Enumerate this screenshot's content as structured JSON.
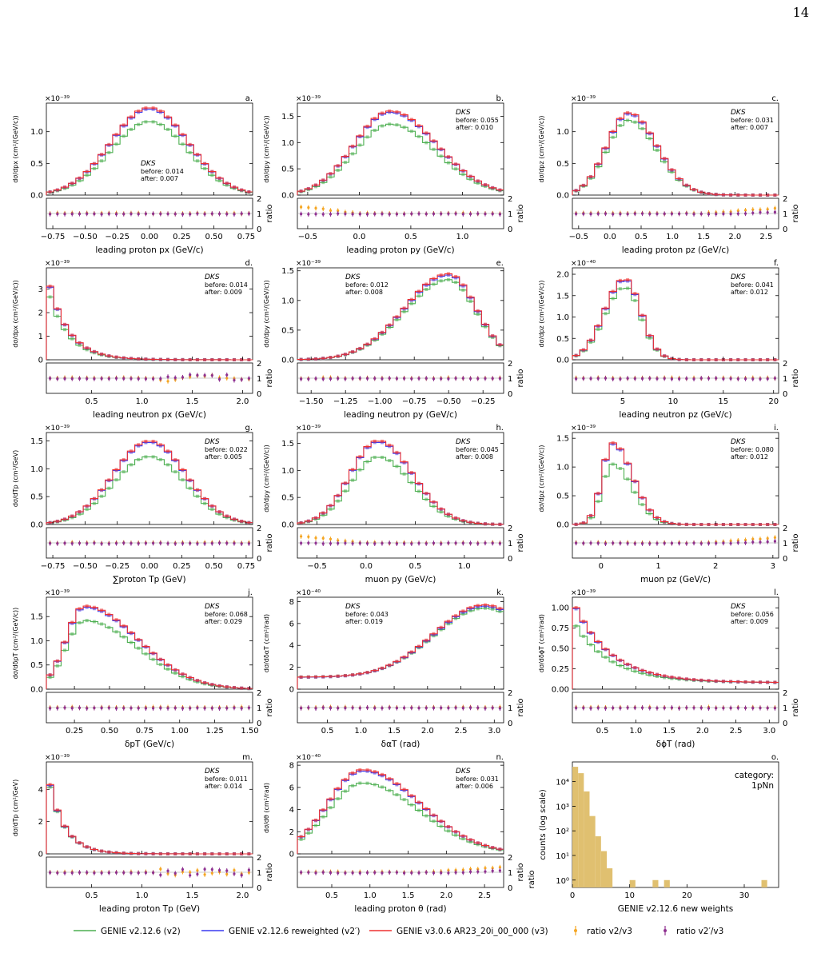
{
  "page_number": "14",
  "colors": {
    "v2": "#4caf50",
    "v2prime": "#3a3af0",
    "v3": "#ee3030",
    "ratio_v2": "#f5a623",
    "ratio_v2prime": "#8e3090",
    "hist": "#e0c070"
  },
  "legend": {
    "v2": "GENIE v2.12.6 (v2)",
    "v2prime": "GENIE v2.12.6 reweighted (v2′)",
    "v3": "GENIE v3.0.6 AR23_20i_00_000 (v3)",
    "ratio_v2": "ratio v2/v3",
    "ratio_v2prime": "ratio v2′/v3"
  },
  "ratio_axis_label": "ratio",
  "ks_title": "DKS",
  "chart_data": [
    {
      "id": "a",
      "type": "line",
      "panel_letter": "a.",
      "xlabel": "leading proton px (GeV/c)",
      "ylabel": "dσ/dpx (cm²/(GeV/c))",
      "multiplier": "×10⁻³⁹",
      "xlim": [
        -0.8,
        0.8
      ],
      "ylim": [
        0,
        1.45
      ],
      "xticks": [
        -0.75,
        -0.5,
        -0.25,
        0,
        0.25,
        0.5,
        0.75
      ],
      "xticklabels": [
        "−0.75",
        "−0.50",
        "−0.25",
        "0.00",
        "0.25",
        "0.50",
        "0.75"
      ],
      "yticks": [
        0,
        0.5,
        1.0
      ],
      "yticklabels": [
        "0.0",
        "0.5",
        "1.0"
      ],
      "ks_pos": "mid-left",
      "ks_before": "before: 0.014",
      "ks_after": "after: 0.007",
      "shape": {
        "kind": "gauss",
        "peak": 1.38,
        "peak_v2": 1.16,
        "center": 0,
        "width": 0.3
      },
      "ratio_pattern": "flat"
    },
    {
      "id": "b",
      "type": "line",
      "panel_letter": "b.",
      "xlabel": "leading proton py (GeV/c)",
      "ylabel": "dσ/dpy (cm²/(GeV/c))",
      "multiplier": "×10⁻³⁹",
      "xlim": [
        -0.6,
        1.4
      ],
      "ylim": [
        0,
        1.75
      ],
      "xticks": [
        -0.5,
        0,
        0.5,
        1.0
      ],
      "xticklabels": [
        "−0.5",
        "0.0",
        "0.5",
        "1.0"
      ],
      "yticks": [
        0,
        0.5,
        1.0,
        1.5
      ],
      "yticklabels": [
        "0.0",
        "0.5",
        "1.0",
        "1.5"
      ],
      "ks_pos": "top-right",
      "ks_before": "before: 0.055",
      "ks_after": "after: 0.010",
      "shape": {
        "kind": "skew",
        "peak": 1.6,
        "peak_v2": 1.35,
        "center": 0.3,
        "wl": 0.35,
        "wr": 0.45
      },
      "ratio_pattern": "left-high"
    },
    {
      "id": "c",
      "type": "line",
      "panel_letter": "c.",
      "xlabel": "leading proton pz (GeV/c)",
      "ylabel": "dσ/dpz (cm²/(GeV/c))",
      "multiplier": "×10⁻³⁹",
      "xlim": [
        -0.6,
        2.7
      ],
      "ylim": [
        0,
        1.45
      ],
      "xticks": [
        -0.5,
        0,
        0.5,
        1.0,
        1.5,
        2.0,
        2.5
      ],
      "xticklabels": [
        "−0.5",
        "0.0",
        "0.5",
        "1.0",
        "1.5",
        "2.0",
        "2.5"
      ],
      "yticks": [
        0,
        0.5,
        1.0
      ],
      "yticklabels": [
        "0.0",
        "0.5",
        "1.0"
      ],
      "ks_pos": "top-right",
      "ks_before": "before: 0.031",
      "ks_after": "after: 0.007",
      "shape": {
        "kind": "skew",
        "peak": 1.3,
        "peak_v2": 1.18,
        "center": 0.3,
        "wl": 0.35,
        "wr": 0.45
      },
      "ratio_pattern": "right-high"
    },
    {
      "id": "d",
      "type": "line",
      "panel_letter": "d.",
      "xlabel": "leading neutron px (GeV/c)",
      "ylabel": "dσ/dpx (cm²/(GeV/c))",
      "multiplier": "×10⁻³⁹",
      "xlim": [
        0.05,
        2.1
      ],
      "ylim": [
        0,
        3.9
      ],
      "xticks": [
        0.5,
        1.0,
        1.5,
        2.0
      ],
      "xticklabels": [
        "0.5",
        "1.0",
        "1.5",
        "2.0"
      ],
      "yticks": [
        0,
        1,
        2,
        3
      ],
      "yticklabels": [
        "0",
        "1",
        "2",
        "3"
      ],
      "ks_pos": "top-right",
      "ks_before": "before: 0.014",
      "ks_after": "after: 0.009",
      "shape": {
        "kind": "decay",
        "peak": 3.75,
        "peak_v2": 3.2,
        "x0": 0.05,
        "scale": 0.2
      },
      "ratio_pattern": "noisy-right"
    },
    {
      "id": "e",
      "type": "line",
      "panel_letter": "e.",
      "xlabel": "leading neutron py (GeV/c)",
      "ylabel": "dσ/dpy (cm²/(GeV/c))",
      "multiplier": "×10⁻³⁹",
      "xlim": [
        -1.6,
        -0.1
      ],
      "ylim": [
        0,
        1.55
      ],
      "xticks": [
        -1.5,
        -1.25,
        -1.0,
        -0.75,
        -0.5,
        -0.25
      ],
      "xticklabels": [
        "−1.50",
        "−1.25",
        "−1.00",
        "−0.75",
        "−0.50",
        "−0.25"
      ],
      "yticks": [
        0,
        0.5,
        1.0,
        1.5
      ],
      "yticklabels": [
        "0.0",
        "0.5",
        "1.0",
        "1.5"
      ],
      "ks_pos": "top-left",
      "ks_before": "before: 0.012",
      "ks_after": "after: 0.008",
      "shape": {
        "kind": "skew",
        "peak": 1.45,
        "peak_v2": 1.35,
        "center": -0.5,
        "wl": 0.32,
        "wr": 0.2
      },
      "ratio_pattern": "flat"
    },
    {
      "id": "f",
      "type": "line",
      "panel_letter": "f.",
      "xlabel": "leading neutron pz (GeV/c)",
      "ylabel": "dσ/dpz (cm²/(GeV/c))",
      "multiplier": "×10⁻⁴⁰",
      "xlim": [
        0,
        20.5
      ],
      "ylim": [
        0,
        2.15
      ],
      "xticks": [
        5,
        10,
        15,
        20
      ],
      "xticklabels": [
        "5",
        "10",
        "15",
        "20"
      ],
      "yticks": [
        0,
        0.5,
        1.0,
        1.5,
        2.0
      ],
      "yticklabels": [
        "0.0",
        "0.5",
        "1.0",
        "1.5",
        "2.0"
      ],
      "ks_pos": "top-right",
      "ks_before": "before: 0.041",
      "ks_after": "after: 0.012",
      "shape": {
        "kind": "skew",
        "peak": 1.9,
        "peak_v2": 1.7,
        "center": 5.2,
        "wl": 2.0,
        "wr": 1.6
      },
      "ratio_pattern": "flat"
    },
    {
      "id": "g",
      "type": "line",
      "panel_letter": "g.",
      "xlabel": "∑proton Tp (GeV)",
      "ylabel": "dσ/dTp (cm²/GeV)",
      "multiplier": "×10⁻³⁹",
      "xlim": [
        -0.8,
        0.8
      ],
      "ylim": [
        0,
        1.65
      ],
      "xticks": [
        -0.75,
        -0.5,
        -0.25,
        0,
        0.25,
        0.5,
        0.75
      ],
      "xticklabels": [
        "−0.75",
        "−0.50",
        "−0.25",
        "0.00",
        "0.25",
        "0.50",
        "0.75"
      ],
      "yticks": [
        0,
        0.5,
        1.0,
        1.5
      ],
      "yticklabels": [
        "0.0",
        "0.5",
        "1.0",
        "1.5"
      ],
      "ks_pos": "top-right",
      "ks_before": "before: 0.022",
      "ks_after": "after: 0.005",
      "shape": {
        "kind": "gauss",
        "peak": 1.5,
        "peak_v2": 1.22,
        "center": 0,
        "width": 0.28
      },
      "ratio_pattern": "flat"
    },
    {
      "id": "h",
      "type": "line",
      "panel_letter": "h.",
      "xlabel": "muon py (GeV/c)",
      "ylabel": "dσ/dpy (cm²/(GeV/c))",
      "multiplier": "×10⁻³⁹",
      "xlim": [
        -0.7,
        1.4
      ],
      "ylim": [
        0,
        1.7
      ],
      "xticks": [
        -0.5,
        0,
        0.5,
        1.0
      ],
      "xticklabels": [
        "−0.5",
        "0.0",
        "0.5",
        "1.0"
      ],
      "yticks": [
        0,
        0.5,
        1.0,
        1.5
      ],
      "yticklabels": [
        "0.0",
        "0.5",
        "1.0",
        "1.5"
      ],
      "ks_pos": "top-right",
      "ks_before": "before: 0.045",
      "ks_after": "after: 0.008",
      "shape": {
        "kind": "skew",
        "peak": 1.55,
        "peak_v2": 1.25,
        "center": 0.12,
        "wl": 0.28,
        "wr": 0.35
      },
      "ratio_pattern": "left-high"
    },
    {
      "id": "i",
      "type": "line",
      "panel_letter": "i.",
      "xlabel": "muon pz (GeV/c)",
      "ylabel": "dσ/dpz (cm²/(GeV/c))",
      "multiplier": "×10⁻³⁹",
      "xlim": [
        -0.5,
        3.1
      ],
      "ylim": [
        0,
        1.6
      ],
      "xticks": [
        0,
        1,
        2,
        3
      ],
      "xticklabels": [
        "0",
        "1",
        "2",
        "3"
      ],
      "yticks": [
        0,
        0.5,
        1.0,
        1.5
      ],
      "yticklabels": [
        "0.0",
        "0.5",
        "1.0",
        "1.5"
      ],
      "ks_pos": "top-right",
      "ks_before": "before: 0.080",
      "ks_after": "after: 0.012",
      "shape": {
        "kind": "skew",
        "peak": 1.42,
        "peak_v2": 1.05,
        "center": 0.2,
        "wl": 0.18,
        "wr": 0.35
      },
      "ratio_pattern": "right-high"
    },
    {
      "id": "j",
      "type": "line",
      "panel_letter": "j.",
      "xlabel": "δpT (GeV/c)",
      "ylabel": "dσ/dδpT (cm²/(GeV/c))",
      "multiplier": "×10⁻³⁹",
      "xlim": [
        0.05,
        1.52
      ],
      "ylim": [
        0,
        1.9
      ],
      "xticks": [
        0.25,
        0.5,
        0.75,
        1.0,
        1.25,
        1.5
      ],
      "xticklabels": [
        "0.25",
        "0.50",
        "0.75",
        "1.00",
        "1.25",
        "1.50"
      ],
      "yticks": [
        0,
        0.5,
        1.0,
        1.5
      ],
      "yticklabels": [
        "0.0",
        "0.5",
        "1.0",
        "1.5"
      ],
      "ks_pos": "top-right",
      "ks_before": "before: 0.068",
      "ks_after": "after: 0.029",
      "shape": {
        "kind": "skew",
        "peak": 1.72,
        "peak_v2": 1.42,
        "center": 0.32,
        "wl": 0.13,
        "wr": 0.38
      },
      "ratio_pattern": "flat"
    },
    {
      "id": "k",
      "type": "line",
      "panel_letter": "k.",
      "xlabel": "δαT (rad)",
      "ylabel": "dσ/dδαT (cm²/rad)",
      "multiplier": "×10⁻⁴⁰",
      "xlim": [
        0.05,
        3.14
      ],
      "ylim": [
        0,
        8.4
      ],
      "xticks": [
        0.5,
        1.0,
        1.5,
        2.0,
        2.5,
        3.0
      ],
      "xticklabels": [
        "0.5",
        "1.0",
        "1.5",
        "2.0",
        "2.5",
        "3.0"
      ],
      "yticks": [
        0,
        2,
        4,
        6,
        8
      ],
      "yticklabels": [
        "0",
        "2",
        "4",
        "6",
        "8"
      ],
      "ks_pos": "top-left",
      "ks_before": "before: 0.043",
      "ks_after": "after: 0.019",
      "shape": {
        "kind": "rise",
        "peak": 7.7,
        "peak_v2": 7.4,
        "base": 1.1,
        "center": 2.85,
        "width": 0.75
      },
      "ratio_pattern": "flat"
    },
    {
      "id": "l",
      "type": "line",
      "panel_letter": "l.",
      "xlabel": "δϕT (rad)",
      "ylabel": "dσ/dδϕT (cm²/rad)",
      "multiplier": "×10⁻³⁹",
      "xlim": [
        0.05,
        3.14
      ],
      "ylim": [
        0,
        1.13
      ],
      "xticks": [
        0.5,
        1.0,
        1.5,
        2.0,
        2.5,
        3.0
      ],
      "xticklabels": [
        "0.5",
        "1.0",
        "1.5",
        "2.0",
        "2.5",
        "3.0"
      ],
      "yticks": [
        0,
        0.25,
        0.5,
        0.75,
        1.0
      ],
      "yticklabels": [
        "0.00",
        "0.25",
        "0.50",
        "0.75",
        "1.00"
      ],
      "ks_pos": "top-right",
      "ks_before": "before: 0.056",
      "ks_after": "after: 0.009",
      "shape": {
        "kind": "decay",
        "peak": 1.1,
        "peak_v2": 0.85,
        "x0": 0.05,
        "scale": 0.55,
        "floor": 0.08
      },
      "ratio_pattern": "flat"
    },
    {
      "id": "m",
      "type": "line",
      "panel_letter": "m.",
      "xlabel": "leading proton Tp (GeV)",
      "ylabel": "dσ/dTp (cm²/GeV)",
      "multiplier": "×10⁻³⁹",
      "xlim": [
        0.05,
        2.1
      ],
      "ylim": [
        0,
        5.7
      ],
      "xticks": [
        0.5,
        1.0,
        1.5,
        2.0
      ],
      "xticklabels": [
        "0.5",
        "1.0",
        "1.5",
        "2.0"
      ],
      "yticks": [
        0,
        2,
        4
      ],
      "yticklabels": [
        "0",
        "2",
        "4"
      ],
      "ks_pos": "top-right",
      "ks_before": "before: 0.011",
      "ks_after": "after: 0.014",
      "shape": {
        "kind": "decay",
        "peak": 5.4,
        "peak_v2": 5.2,
        "x0": 0.05,
        "scale": 0.16
      },
      "ratio_pattern": "noisy-right"
    },
    {
      "id": "n",
      "type": "line",
      "panel_letter": "n.",
      "xlabel": "leading proton θ (rad)",
      "ylabel": "dσ/dθ (cm²/rad)",
      "multiplier": "×10⁻⁴⁰",
      "xlim": [
        0.05,
        2.75
      ],
      "ylim": [
        0,
        8.3
      ],
      "xticks": [
        0.5,
        1.0,
        1.5,
        2.0,
        2.5
      ],
      "xticklabels": [
        "0.5",
        "1.0",
        "1.5",
        "2.0",
        "2.5"
      ],
      "yticks": [
        0,
        2,
        4,
        6,
        8
      ],
      "yticklabels": [
        "0",
        "2",
        "4",
        "6",
        "8"
      ],
      "ks_pos": "top-right",
      "ks_before": "before: 0.031",
      "ks_after": "after: 0.006",
      "shape": {
        "kind": "skew",
        "peak": 7.6,
        "peak_v2": 6.4,
        "center": 0.9,
        "wl": 0.45,
        "wr": 0.75
      },
      "ratio_pattern": "right-high"
    },
    {
      "id": "o",
      "type": "bar",
      "panel_letter": "o.",
      "xlabel": "GENIE v2.12.6 new weights",
      "ylabel": "counts (log scale)",
      "xlim": [
        0,
        36
      ],
      "log_y": true,
      "ylim_exp": [
        -0.3,
        4.8
      ],
      "xticks": [
        0,
        10,
        20,
        30
      ],
      "xticklabels": [
        "0",
        "10",
        "20",
        "30"
      ],
      "yticks_exp": [
        0,
        1,
        2,
        3,
        4
      ],
      "yticklabels": [
        "10⁰",
        "10¹",
        "10²",
        "10³",
        "10⁴"
      ],
      "category_label": "category:",
      "category_value": "1pNn",
      "bin_width": 1,
      "bins": [
        {
          "x": 0,
          "count": 40000
        },
        {
          "x": 1,
          "count": 22000
        },
        {
          "x": 2,
          "count": 4000
        },
        {
          "x": 3,
          "count": 400
        },
        {
          "x": 4,
          "count": 60
        },
        {
          "x": 5,
          "count": 15
        },
        {
          "x": 6,
          "count": 3
        },
        {
          "x": 10,
          "count": 1
        },
        {
          "x": 14,
          "count": 1
        },
        {
          "x": 16,
          "count": 1
        },
        {
          "x": 33,
          "count": 1
        }
      ]
    }
  ]
}
